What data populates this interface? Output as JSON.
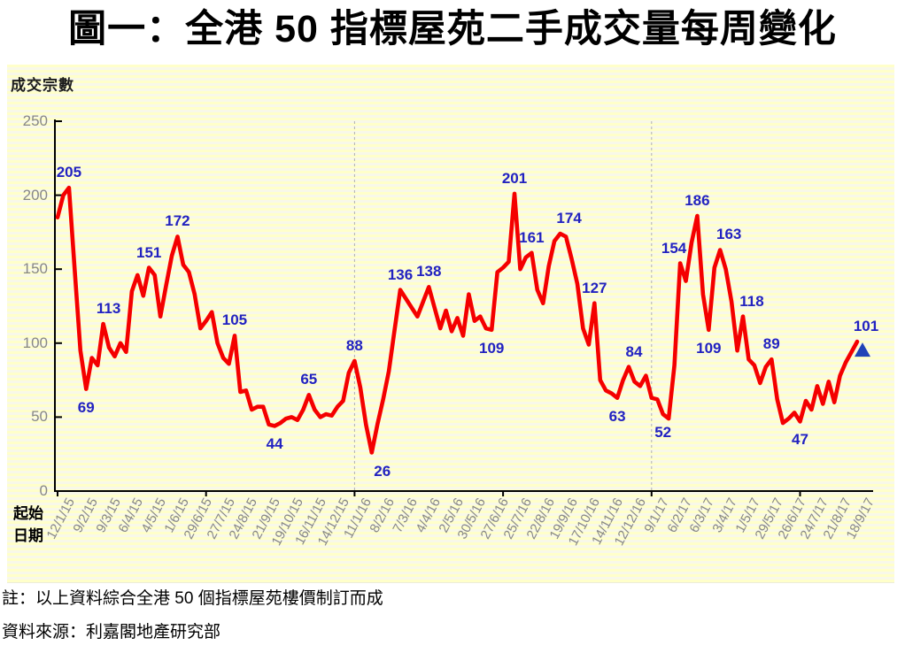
{
  "title": "圖一：全港 50 指標屋苑二手成交量每周變化",
  "notes": {
    "note": "註：以上資料綜合全港 50 個指標屋苑樓價制訂而成",
    "source": "資料來源：利嘉閣地產研究部"
  },
  "chart_data": {
    "type": "line",
    "title": "圖一：全港 50 指標屋苑二手成交量每周變化",
    "ylabel": "成交宗數",
    "xlabel": "起始日期",
    "ylim": [
      0,
      250
    ],
    "yticks": [
      0,
      50,
      100,
      150,
      200,
      250
    ],
    "grid": "off",
    "legend": "none",
    "x_unit": "week",
    "x_tick_interval_weeks": 4,
    "x_tick_labels": [
      "12/1/15",
      "9/2/15",
      "9/3/15",
      "6/4/15",
      "4/5/15",
      "1/6/15",
      "29/6/15",
      "27/7/15",
      "24/8/15",
      "21/9/15",
      "19/10/15",
      "16/11/15",
      "14/12/15",
      "11/1/16",
      "8/2/16",
      "7/3/16",
      "4/4/16",
      "2/5/16",
      "30/5/16",
      "27/6/16",
      "25/7/16",
      "22/8/16",
      "19/9/16",
      "17/10/16",
      "14/11/16",
      "12/12/16",
      "9/1/17",
      "6/2/17",
      "6/3/17",
      "3/4/17",
      "1/5/17",
      "29/5/17",
      "26/6/17",
      "24/7/17",
      "21/8/17",
      "18/9/17"
    ],
    "values": [
      185,
      200,
      205,
      150,
      95,
      69,
      90,
      85,
      113,
      97,
      91,
      100,
      94,
      135,
      146,
      132,
      151,
      146,
      118,
      139,
      159,
      172,
      153,
      148,
      133,
      110,
      115,
      121,
      100,
      90,
      86,
      105,
      67,
      68,
      55,
      57,
      57,
      45,
      44,
      46,
      49,
      50,
      48,
      55,
      65,
      55,
      50,
      52,
      51,
      57,
      61,
      80,
      88,
      70,
      45,
      26,
      45,
      62,
      81,
      109,
      136,
      130,
      124,
      118,
      128,
      138,
      124,
      110,
      122,
      108,
      117,
      105,
      133,
      115,
      118,
      110,
      109,
      148,
      151,
      155,
      201,
      150,
      158,
      161,
      136,
      127,
      152,
      169,
      174,
      172,
      157,
      140,
      110,
      99,
      127,
      75,
      68,
      66,
      63,
      75,
      84,
      74,
      71,
      78,
      63,
      62,
      52,
      49,
      85,
      154,
      142,
      168,
      186,
      133,
      109,
      151,
      163,
      150,
      128,
      95,
      118,
      89,
      85,
      73,
      84,
      89,
      62,
      46,
      49,
      53,
      47,
      61,
      55,
      71,
      59,
      74,
      60,
      78,
      87,
      94,
      101
    ],
    "annotations": [
      {
        "week": 2,
        "value": 205,
        "side": "above"
      },
      {
        "week": 5,
        "value": 69,
        "side": "below"
      },
      {
        "week": 8,
        "value": 113,
        "side": "above",
        "dx": 6
      },
      {
        "week": 16,
        "value": 151,
        "side": "above"
      },
      {
        "week": 21,
        "value": 172,
        "side": "above"
      },
      {
        "week": 31,
        "value": 105,
        "side": "above"
      },
      {
        "week": 38,
        "value": 44,
        "side": "below"
      },
      {
        "week": 44,
        "value": 65,
        "side": "above"
      },
      {
        "week": 52,
        "value": 88,
        "side": "above"
      },
      {
        "week": 55,
        "value": 26,
        "side": "below",
        "dx": 12
      },
      {
        "week": 60,
        "value": 136,
        "side": "above"
      },
      {
        "week": 65,
        "value": 138,
        "side": "above"
      },
      {
        "week": 76,
        "value": 109,
        "side": "below"
      },
      {
        "week": 80,
        "value": 201,
        "side": "above"
      },
      {
        "week": 83,
        "value": 161,
        "side": "above"
      },
      {
        "week": 88,
        "value": 174,
        "side": "above",
        "dx": 10
      },
      {
        "week": 94,
        "value": 127,
        "side": "above"
      },
      {
        "week": 98,
        "value": 63,
        "side": "below"
      },
      {
        "week": 100,
        "value": 84,
        "side": "above",
        "dx": 6
      },
      {
        "week": 106,
        "value": 52,
        "side": "below"
      },
      {
        "week": 109,
        "value": 154,
        "side": "above",
        "dx": -7
      },
      {
        "week": 112,
        "value": 186,
        "side": "above"
      },
      {
        "week": 114,
        "value": 109,
        "side": "below"
      },
      {
        "week": 116,
        "value": 163,
        "side": "above",
        "dx": 10
      },
      {
        "week": 120,
        "value": 118,
        "side": "above",
        "dx": 10
      },
      {
        "week": 125,
        "value": 89,
        "side": "above"
      },
      {
        "week": 130,
        "value": 47,
        "side": "below"
      },
      {
        "week": 140,
        "value": 101,
        "side": "above",
        "dx": 10
      }
    ],
    "year_divider_weeks": [
      52,
      104
    ],
    "half_year_tick_weeks": [
      0,
      26,
      52,
      78,
      104,
      130
    ],
    "latest_marker": {
      "week": 140,
      "value": 101,
      "shape": "triangle-up"
    },
    "colors": {
      "line": "#f40000",
      "data_label": "#2222c0",
      "axis": "#000000",
      "tick_label": "#878787",
      "marker": "#2143b8",
      "year_divider": "#b0b0b0",
      "panel_stripe_a": "#ffffca",
      "panel_stripe_b": "#f8f8e9"
    }
  }
}
